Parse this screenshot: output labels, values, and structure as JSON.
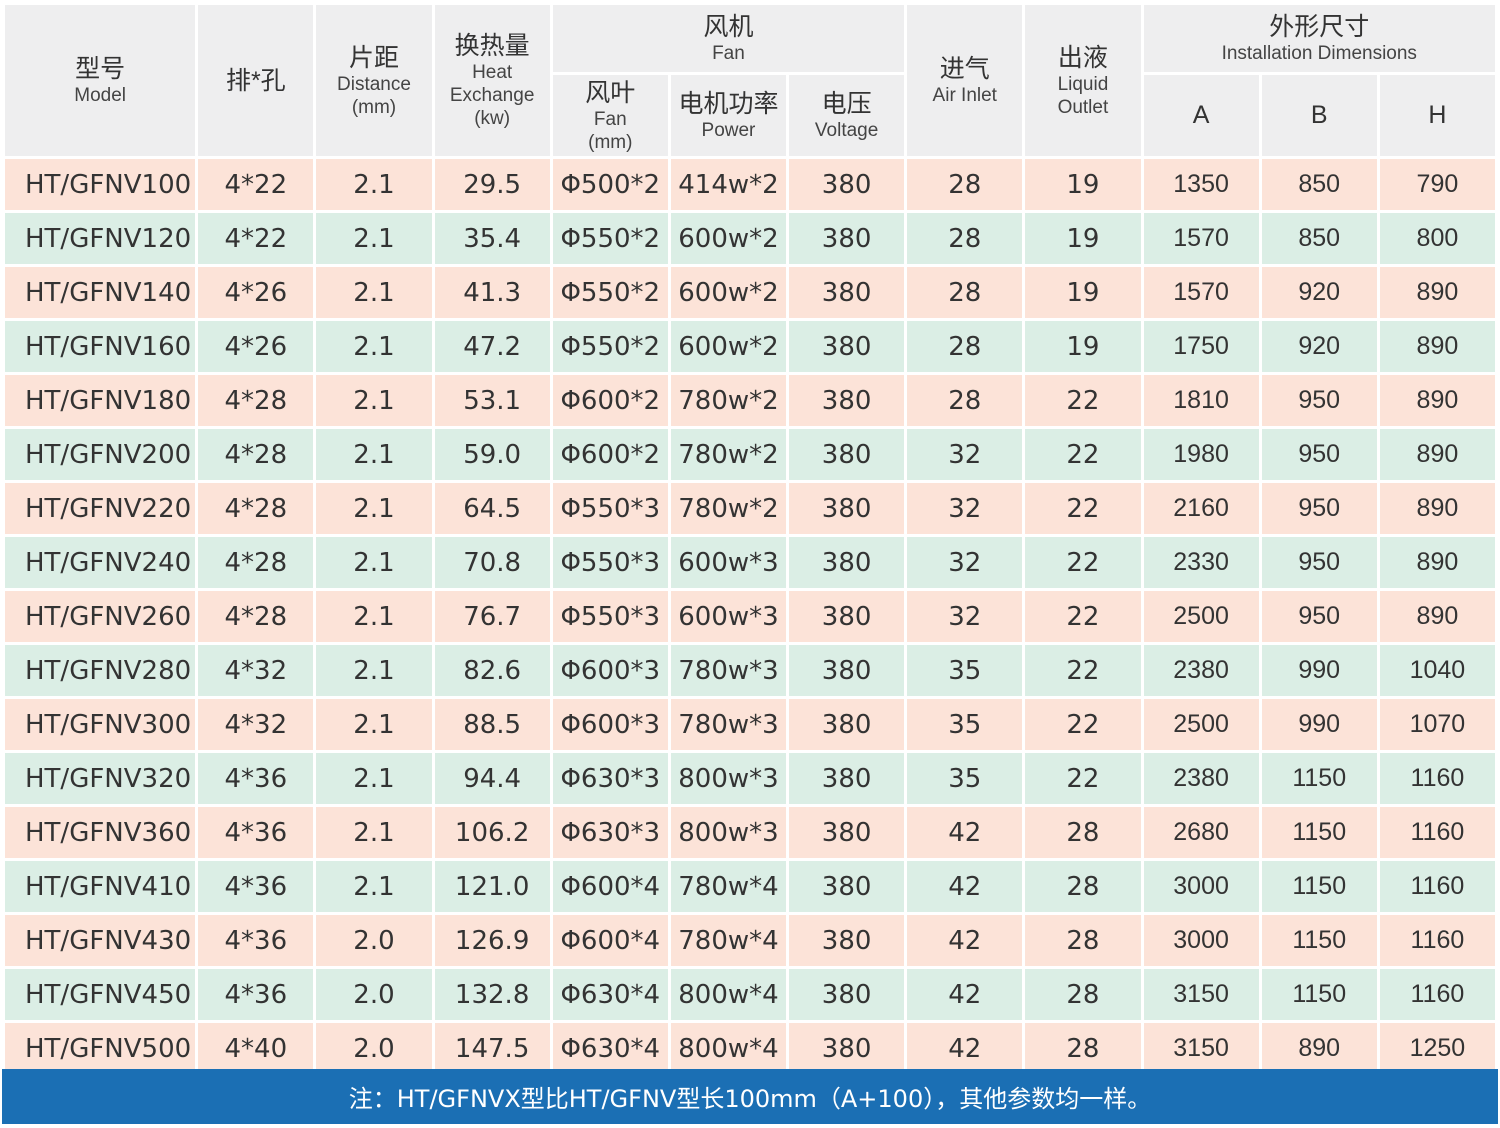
{
  "headers": {
    "model": {
      "zh": "型号",
      "en": "Model"
    },
    "rows_holes": {
      "zh": "排*孔"
    },
    "distance": {
      "zh": "片距",
      "en": "Distance",
      "unit": "(mm)"
    },
    "heat": {
      "zh": "换热量",
      "en1": "Heat",
      "en2": "Exchange",
      "unit": "(kw)"
    },
    "fan_group": {
      "zh": "风机",
      "en": "Fan"
    },
    "fan_blade": {
      "zh": "风叶",
      "en": "Fan",
      "unit": "(mm)"
    },
    "motor_power": {
      "zh": "电机功率",
      "en": "Power"
    },
    "voltage": {
      "zh": "电压",
      "en": "Voltage"
    },
    "air_inlet": {
      "zh": "进气",
      "en": "Air Inlet"
    },
    "liquid_outlet": {
      "zh": "出液",
      "en1": "Liquid",
      "en2": "Outlet"
    },
    "dims_group": {
      "zh": "外形尺寸",
      "en": "Installation Dimensions"
    },
    "dim_a": "A",
    "dim_b": "B",
    "dim_h": "H"
  },
  "rows": [
    {
      "model": "HT/GFNV100",
      "rows_holes": "4*22",
      "distance": "2.1",
      "heat": "29.5",
      "fan": "Φ500*2",
      "power": "414w*2",
      "voltage": "380",
      "air_inlet": "28",
      "liquid_outlet": "19",
      "a": "1350",
      "b": "850",
      "h": "790"
    },
    {
      "model": "HT/GFNV120",
      "rows_holes": "4*22",
      "distance": "2.1",
      "heat": "35.4",
      "fan": "Φ550*2",
      "power": "600w*2",
      "voltage": "380",
      "air_inlet": "28",
      "liquid_outlet": "19",
      "a": "1570",
      "b": "850",
      "h": "800"
    },
    {
      "model": "HT/GFNV140",
      "rows_holes": "4*26",
      "distance": "2.1",
      "heat": "41.3",
      "fan": "Φ550*2",
      "power": "600w*2",
      "voltage": "380",
      "air_inlet": "28",
      "liquid_outlet": "19",
      "a": "1570",
      "b": "920",
      "h": "890"
    },
    {
      "model": "HT/GFNV160",
      "rows_holes": "4*26",
      "distance": "2.1",
      "heat": "47.2",
      "fan": "Φ550*2",
      "power": "600w*2",
      "voltage": "380",
      "air_inlet": "28",
      "liquid_outlet": "19",
      "a": "1750",
      "b": "920",
      "h": "890"
    },
    {
      "model": "HT/GFNV180",
      "rows_holes": "4*28",
      "distance": "2.1",
      "heat": "53.1",
      "fan": "Φ600*2",
      "power": "780w*2",
      "voltage": "380",
      "air_inlet": "28",
      "liquid_outlet": "22",
      "a": "1810",
      "b": "950",
      "h": "890"
    },
    {
      "model": "HT/GFNV200",
      "rows_holes": "4*28",
      "distance": "2.1",
      "heat": "59.0",
      "fan": "Φ600*2",
      "power": "780w*2",
      "voltage": "380",
      "air_inlet": "32",
      "liquid_outlet": "22",
      "a": "1980",
      "b": "950",
      "h": "890"
    },
    {
      "model": "HT/GFNV220",
      "rows_holes": "4*28",
      "distance": "2.1",
      "heat": "64.5",
      "fan": "Φ550*3",
      "power": "780w*2",
      "voltage": "380",
      "air_inlet": "32",
      "liquid_outlet": "22",
      "a": "2160",
      "b": "950",
      "h": "890"
    },
    {
      "model": "HT/GFNV240",
      "rows_holes": "4*28",
      "distance": "2.1",
      "heat": "70.8",
      "fan": "Φ550*3",
      "power": "600w*3",
      "voltage": "380",
      "air_inlet": "32",
      "liquid_outlet": "22",
      "a": "2330",
      "b": "950",
      "h": "890"
    },
    {
      "model": "HT/GFNV260",
      "rows_holes": "4*28",
      "distance": "2.1",
      "heat": "76.7",
      "fan": "Φ550*3",
      "power": "600w*3",
      "voltage": "380",
      "air_inlet": "32",
      "liquid_outlet": "22",
      "a": "2500",
      "b": "950",
      "h": "890"
    },
    {
      "model": "HT/GFNV280",
      "rows_holes": "4*32",
      "distance": "2.1",
      "heat": "82.6",
      "fan": "Φ600*3",
      "power": "780w*3",
      "voltage": "380",
      "air_inlet": "35",
      "liquid_outlet": "22",
      "a": "2380",
      "b": "990",
      "h": "1040"
    },
    {
      "model": "HT/GFNV300",
      "rows_holes": "4*32",
      "distance": "2.1",
      "heat": "88.5",
      "fan": "Φ600*3",
      "power": "780w*3",
      "voltage": "380",
      "air_inlet": "35",
      "liquid_outlet": "22",
      "a": "2500",
      "b": "990",
      "h": "1070"
    },
    {
      "model": "HT/GFNV320",
      "rows_holes": "4*36",
      "distance": "2.1",
      "heat": "94.4",
      "fan": "Φ630*3",
      "power": "800w*3",
      "voltage": "380",
      "air_inlet": "35",
      "liquid_outlet": "22",
      "a": "2380",
      "b": "1150",
      "h": "1160"
    },
    {
      "model": "HT/GFNV360",
      "rows_holes": "4*36",
      "distance": "2.1",
      "heat": "106.2",
      "fan": "Φ630*3",
      "power": "800w*3",
      "voltage": "380",
      "air_inlet": "42",
      "liquid_outlet": "28",
      "a": "2680",
      "b": "1150",
      "h": "1160"
    },
    {
      "model": "HT/GFNV410",
      "rows_holes": "4*36",
      "distance": "2.1",
      "heat": "121.0",
      "fan": "Φ600*4",
      "power": "780w*4",
      "voltage": "380",
      "air_inlet": "42",
      "liquid_outlet": "28",
      "a": "3000",
      "b": "1150",
      "h": "1160"
    },
    {
      "model": "HT/GFNV430",
      "rows_holes": "4*36",
      "distance": "2.0",
      "heat": "126.9",
      "fan": "Φ600*4",
      "power": "780w*4",
      "voltage": "380",
      "air_inlet": "42",
      "liquid_outlet": "28",
      "a": "3000",
      "b": "1150",
      "h": "1160"
    },
    {
      "model": "HT/GFNV450",
      "rows_holes": "4*36",
      "distance": "2.0",
      "heat": "132.8",
      "fan": "Φ630*4",
      "power": "800w*4",
      "voltage": "380",
      "air_inlet": "42",
      "liquid_outlet": "28",
      "a": "3150",
      "b": "1150",
      "h": "1160"
    },
    {
      "model": "HT/GFNV500",
      "rows_holes": "4*40",
      "distance": "2.0",
      "heat": "147.5",
      "fan": "Φ630*4",
      "power": "800w*4",
      "voltage": "380",
      "air_inlet": "42",
      "liquid_outlet": "28",
      "a": "3150",
      "b": "890",
      "h": "1250"
    }
  ],
  "note": "注：HT/GFNVX型比HT/GFNV型长100mm（A+100），其他参数均一样。",
  "colors": {
    "header_bg": "#eeeeef",
    "row_odd": "#fce3d8",
    "row_even": "#dbeee5",
    "note_bg": "#1b6fb4"
  }
}
